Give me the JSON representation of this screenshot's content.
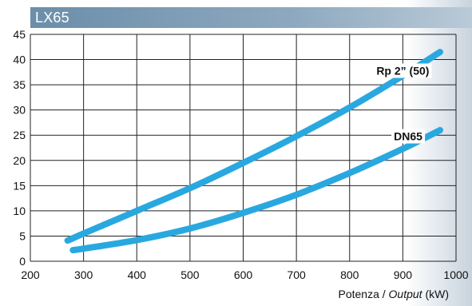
{
  "chart_data": {
    "type": "line",
    "title": "LX65",
    "xlabel": "Potenza / Output (kW)",
    "xlabel_main": "Potenza / ",
    "xlabel_italic": "Output",
    "xlabel_unit": " (kW)",
    "ylabel": "",
    "xlim": [
      200,
      1000
    ],
    "ylim": [
      0,
      45
    ],
    "xticks": [
      200,
      300,
      400,
      500,
      600,
      700,
      800,
      900,
      1000
    ],
    "yticks": [
      0,
      5,
      10,
      15,
      20,
      25,
      30,
      35,
      40,
      45
    ],
    "grid": true,
    "series": [
      {
        "name": "Rp 2” (50)",
        "color": "#29a8e0",
        "label_at": [
          900,
          37
        ],
        "points": [
          [
            270,
            4.1
          ],
          [
            300,
            5.5
          ],
          [
            400,
            10
          ],
          [
            500,
            14.5
          ],
          [
            600,
            19.5
          ],
          [
            700,
            24.8
          ],
          [
            800,
            30.5
          ],
          [
            900,
            36.8
          ],
          [
            970,
            41.5
          ]
        ]
      },
      {
        "name": "DN65",
        "color": "#29a8e0",
        "label_at": [
          910,
          24
        ],
        "points": [
          [
            280,
            2.2
          ],
          [
            300,
            2.5
          ],
          [
            400,
            4.2
          ],
          [
            500,
            6.5
          ],
          [
            600,
            9.6
          ],
          [
            700,
            13.2
          ],
          [
            800,
            17.5
          ],
          [
            900,
            22.3
          ],
          [
            970,
            26
          ]
        ]
      }
    ]
  }
}
